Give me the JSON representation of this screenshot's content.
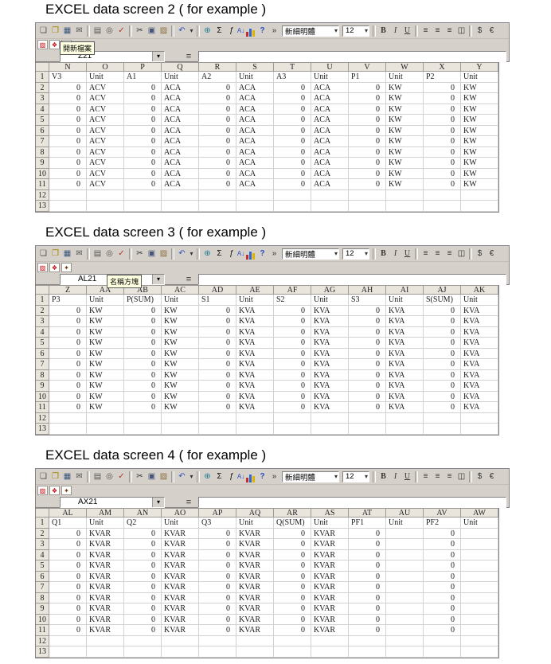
{
  "toolbar": {
    "font_name": "新細明體",
    "font_size": "12",
    "equals": "=",
    "format": {
      "bold": "B",
      "italic": "I",
      "underline": "U",
      "align_left": "≡",
      "align_center": "≡",
      "align_right": "≡",
      "merge_center": "◫",
      "currency": "$",
      "euro": "€"
    },
    "main_icons": [
      {
        "name": "new-file-icon",
        "glyph": "❏",
        "color": "#4a4a4a"
      },
      {
        "name": "open-file-icon",
        "glyph": "❐",
        "color": "#a97d00"
      },
      {
        "name": "save-icon",
        "glyph": "▦",
        "color": "#35527a"
      },
      {
        "name": "email-icon",
        "glyph": "✉",
        "color": "#555555"
      },
      {
        "sep": true
      },
      {
        "name": "print-icon",
        "glyph": "▤",
        "color": "#555555"
      },
      {
        "name": "print-preview-icon",
        "glyph": "◎",
        "color": "#555555"
      },
      {
        "name": "spelling-icon",
        "glyph": "✓",
        "color": "#b03030"
      },
      {
        "sep": true
      },
      {
        "name": "cut-icon",
        "glyph": "✂",
        "color": "#333333"
      },
      {
        "name": "copy-icon",
        "glyph": "▣",
        "color": "#445577"
      },
      {
        "name": "paste-icon",
        "glyph": "▨",
        "color": "#8a6d3b"
      },
      {
        "sep": true
      },
      {
        "name": "undo-icon",
        "glyph": "↶",
        "color": "#2a52be"
      },
      {
        "name": "undo-dropdown-icon",
        "glyph": "▾",
        "color": "#333333",
        "cls": "small"
      },
      {
        "sep": true
      },
      {
        "name": "hyperlink-icon",
        "glyph": "⊕",
        "color": "#1e7a8c"
      },
      {
        "name": "autosum-icon",
        "glyph": "Σ",
        "color": "#111111"
      },
      {
        "name": "function-icon",
        "glyph": "ƒ",
        "color": "#111111",
        "cls": "it"
      },
      {
        "name": "sort-ascending-icon",
        "glyph": "A↓",
        "color": "#2a52be",
        "cls": "small"
      },
      {
        "name": "chart-wizard-icon",
        "type": "chart"
      },
      {
        "name": "help-icon",
        "glyph": "?",
        "color": "#2a52be",
        "cls": "bold"
      },
      {
        "name": "more-buttons-icon",
        "glyph": "»",
        "color": "#333333"
      }
    ],
    "addin_icons": [
      {
        "name": "acrobat-convert-pdf-icon",
        "glyph": "▨",
        "fg": "#c00000"
      },
      {
        "name": "acrobat-pdf-email-icon",
        "glyph": "❖",
        "fg": "#c00000"
      },
      {
        "name": "acrobat-review-icon",
        "glyph": "✦",
        "fg": "#803000"
      }
    ]
  },
  "screens": [
    {
      "title": "EXCEL data screen 2 ( for example )",
      "name_box": "Z21",
      "tooltip": "開新檔案",
      "columns": [
        "N",
        "O",
        "P",
        "Q",
        "R",
        "S",
        "T",
        "U",
        "V",
        "W",
        "X",
        "Y"
      ],
      "rows": [
        {
          "num": "1",
          "cells": [
            "V3",
            "Unit",
            "A1",
            "Unit",
            "A2",
            "Unit",
            "A3",
            "Unit",
            "P1",
            "Unit",
            "P2",
            "Unit"
          ]
        },
        {
          "num": "2",
          "cells": [
            "0",
            "ACV",
            "0",
            "ACA",
            "0",
            "ACA",
            "0",
            "ACA",
            "0",
            "KW",
            "0",
            "KW"
          ]
        },
        {
          "num": "3",
          "cells": [
            "0",
            "ACV",
            "0",
            "ACA",
            "0",
            "ACA",
            "0",
            "ACA",
            "0",
            "KW",
            "0",
            "KW"
          ]
        },
        {
          "num": "4",
          "cells": [
            "0",
            "ACV",
            "0",
            "ACA",
            "0",
            "ACA",
            "0",
            "ACA",
            "0",
            "KW",
            "0",
            "KW"
          ]
        },
        {
          "num": "5",
          "cells": [
            "0",
            "ACV",
            "0",
            "ACA",
            "0",
            "ACA",
            "0",
            "ACA",
            "0",
            "KW",
            "0",
            "KW"
          ]
        },
        {
          "num": "6",
          "cells": [
            "0",
            "ACV",
            "0",
            "ACA",
            "0",
            "ACA",
            "0",
            "ACA",
            "0",
            "KW",
            "0",
            "KW"
          ]
        },
        {
          "num": "7",
          "cells": [
            "0",
            "ACV",
            "0",
            "ACA",
            "0",
            "ACA",
            "0",
            "ACA",
            "0",
            "KW",
            "0",
            "KW"
          ]
        },
        {
          "num": "8",
          "cells": [
            "0",
            "ACV",
            "0",
            "ACA",
            "0",
            "ACA",
            "0",
            "ACA",
            "0",
            "KW",
            "0",
            "KW"
          ]
        },
        {
          "num": "9",
          "cells": [
            "0",
            "ACV",
            "0",
            "ACA",
            "0",
            "ACA",
            "0",
            "ACA",
            "0",
            "KW",
            "0",
            "KW"
          ]
        },
        {
          "num": "10",
          "cells": [
            "0",
            "ACV",
            "0",
            "ACA",
            "0",
            "ACA",
            "0",
            "ACA",
            "0",
            "KW",
            "0",
            "KW"
          ]
        },
        {
          "num": "11",
          "cells": [
            "0",
            "ACV",
            "0",
            "ACA",
            "0",
            "ACA",
            "0",
            "ACA",
            "0",
            "KW",
            "0",
            "KW"
          ]
        },
        {
          "num": "12",
          "cells": [
            "",
            "",
            "",
            "",
            "",
            "",
            "",
            "",
            "",
            "",
            "",
            ""
          ]
        },
        {
          "num": "13",
          "cells": [
            "",
            "",
            "",
            "",
            "",
            "",
            "",
            "",
            "",
            "",
            "",
            ""
          ]
        }
      ]
    },
    {
      "title": "EXCEL data screen 3 ( for example )",
      "name_box": "AL21",
      "tooltip": "名稱方塊",
      "columns": [
        "Z",
        "AA",
        "AB",
        "AC",
        "AD",
        "AE",
        "AF",
        "AG",
        "AH",
        "AI",
        "AJ",
        "AK"
      ],
      "rows": [
        {
          "num": "1",
          "cells": [
            "P3",
            "Unit",
            "P(SUM)",
            "Unit",
            "S1",
            "Unit",
            "S2",
            "Unit",
            "S3",
            "Unit",
            "S(SUM)",
            "Unit"
          ]
        },
        {
          "num": "2",
          "cells": [
            "0",
            "KW",
            "0",
            "KW",
            "0",
            "KVA",
            "0",
            "KVA",
            "0",
            "KVA",
            "0",
            "KVA"
          ]
        },
        {
          "num": "3",
          "cells": [
            "0",
            "KW",
            "0",
            "KW",
            "0",
            "KVA",
            "0",
            "KVA",
            "0",
            "KVA",
            "0",
            "KVA"
          ]
        },
        {
          "num": "4",
          "cells": [
            "0",
            "KW",
            "0",
            "KW",
            "0",
            "KVA",
            "0",
            "KVA",
            "0",
            "KVA",
            "0",
            "KVA"
          ]
        },
        {
          "num": "5",
          "cells": [
            "0",
            "KW",
            "0",
            "KW",
            "0",
            "KVA",
            "0",
            "KVA",
            "0",
            "KVA",
            "0",
            "KVA"
          ]
        },
        {
          "num": "6",
          "cells": [
            "0",
            "KW",
            "0",
            "KW",
            "0",
            "KVA",
            "0",
            "KVA",
            "0",
            "KVA",
            "0",
            "KVA"
          ]
        },
        {
          "num": "7",
          "cells": [
            "0",
            "KW",
            "0",
            "KW",
            "0",
            "KVA",
            "0",
            "KVA",
            "0",
            "KVA",
            "0",
            "KVA"
          ]
        },
        {
          "num": "8",
          "cells": [
            "0",
            "KW",
            "0",
            "KW",
            "0",
            "KVA",
            "0",
            "KVA",
            "0",
            "KVA",
            "0",
            "KVA"
          ]
        },
        {
          "num": "9",
          "cells": [
            "0",
            "KW",
            "0",
            "KW",
            "0",
            "KVA",
            "0",
            "KVA",
            "0",
            "KVA",
            "0",
            "KVA"
          ]
        },
        {
          "num": "10",
          "cells": [
            "0",
            "KW",
            "0",
            "KW",
            "0",
            "KVA",
            "0",
            "KVA",
            "0",
            "KVA",
            "0",
            "KVA"
          ]
        },
        {
          "num": "11",
          "cells": [
            "0",
            "KW",
            "0",
            "KW",
            "0",
            "KVA",
            "0",
            "KVA",
            "0",
            "KVA",
            "0",
            "KVA"
          ]
        },
        {
          "num": "12",
          "cells": [
            "",
            "",
            "",
            "",
            "",
            "",
            "",
            "",
            "",
            "",
            "",
            ""
          ]
        },
        {
          "num": "13",
          "cells": [
            "",
            "",
            "",
            "",
            "",
            "",
            "",
            "",
            "",
            "",
            "",
            ""
          ]
        }
      ]
    },
    {
      "title": "EXCEL data screen 4 ( for example )",
      "name_box": "AX21",
      "tooltip": "",
      "columns": [
        "AL",
        "AM",
        "AN",
        "AO",
        "AP",
        "AQ",
        "AR",
        "AS",
        "AT",
        "AU",
        "AV",
        "AW"
      ],
      "rows": [
        {
          "num": "1",
          "cells": [
            "Q1",
            "Unit",
            "Q2",
            "Unit",
            "Q3",
            "Unit",
            "Q(SUM)",
            "Unit",
            "PF1",
            "Unit",
            "PF2",
            "Unit"
          ]
        },
        {
          "num": "2",
          "cells": [
            "0",
            "KVAR",
            "0",
            "KVAR",
            "0",
            "KVAR",
            "0",
            "KVAR",
            "0",
            "",
            "0",
            ""
          ]
        },
        {
          "num": "3",
          "cells": [
            "0",
            "KVAR",
            "0",
            "KVAR",
            "0",
            "KVAR",
            "0",
            "KVAR",
            "0",
            "",
            "0",
            ""
          ]
        },
        {
          "num": "4",
          "cells": [
            "0",
            "KVAR",
            "0",
            "KVAR",
            "0",
            "KVAR",
            "0",
            "KVAR",
            "0",
            "",
            "0",
            ""
          ]
        },
        {
          "num": "5",
          "cells": [
            "0",
            "KVAR",
            "0",
            "KVAR",
            "0",
            "KVAR",
            "0",
            "KVAR",
            "0",
            "",
            "0",
            ""
          ]
        },
        {
          "num": "6",
          "cells": [
            "0",
            "KVAR",
            "0",
            "KVAR",
            "0",
            "KVAR",
            "0",
            "KVAR",
            "0",
            "",
            "0",
            ""
          ]
        },
        {
          "num": "7",
          "cells": [
            "0",
            "KVAR",
            "0",
            "KVAR",
            "0",
            "KVAR",
            "0",
            "KVAR",
            "0",
            "",
            "0",
            ""
          ]
        },
        {
          "num": "8",
          "cells": [
            "0",
            "KVAR",
            "0",
            "KVAR",
            "0",
            "KVAR",
            "0",
            "KVAR",
            "0",
            "",
            "0",
            ""
          ]
        },
        {
          "num": "9",
          "cells": [
            "0",
            "KVAR",
            "0",
            "KVAR",
            "0",
            "KVAR",
            "0",
            "KVAR",
            "0",
            "",
            "0",
            ""
          ]
        },
        {
          "num": "10",
          "cells": [
            "0",
            "KVAR",
            "0",
            "KVAR",
            "0",
            "KVAR",
            "0",
            "KVAR",
            "0",
            "",
            "0",
            ""
          ]
        },
        {
          "num": "11",
          "cells": [
            "0",
            "KVAR",
            "0",
            "KVAR",
            "0",
            "KVAR",
            "0",
            "KVAR",
            "0",
            "",
            "0",
            ""
          ]
        },
        {
          "num": "12",
          "cells": [
            "",
            "",
            "",
            "",
            "",
            "",
            "",
            "",
            "",
            "",
            "",
            ""
          ]
        },
        {
          "num": "13",
          "cells": [
            "",
            "",
            "",
            "",
            "",
            "",
            "",
            "",
            "",
            "",
            "",
            ""
          ]
        }
      ]
    }
  ]
}
